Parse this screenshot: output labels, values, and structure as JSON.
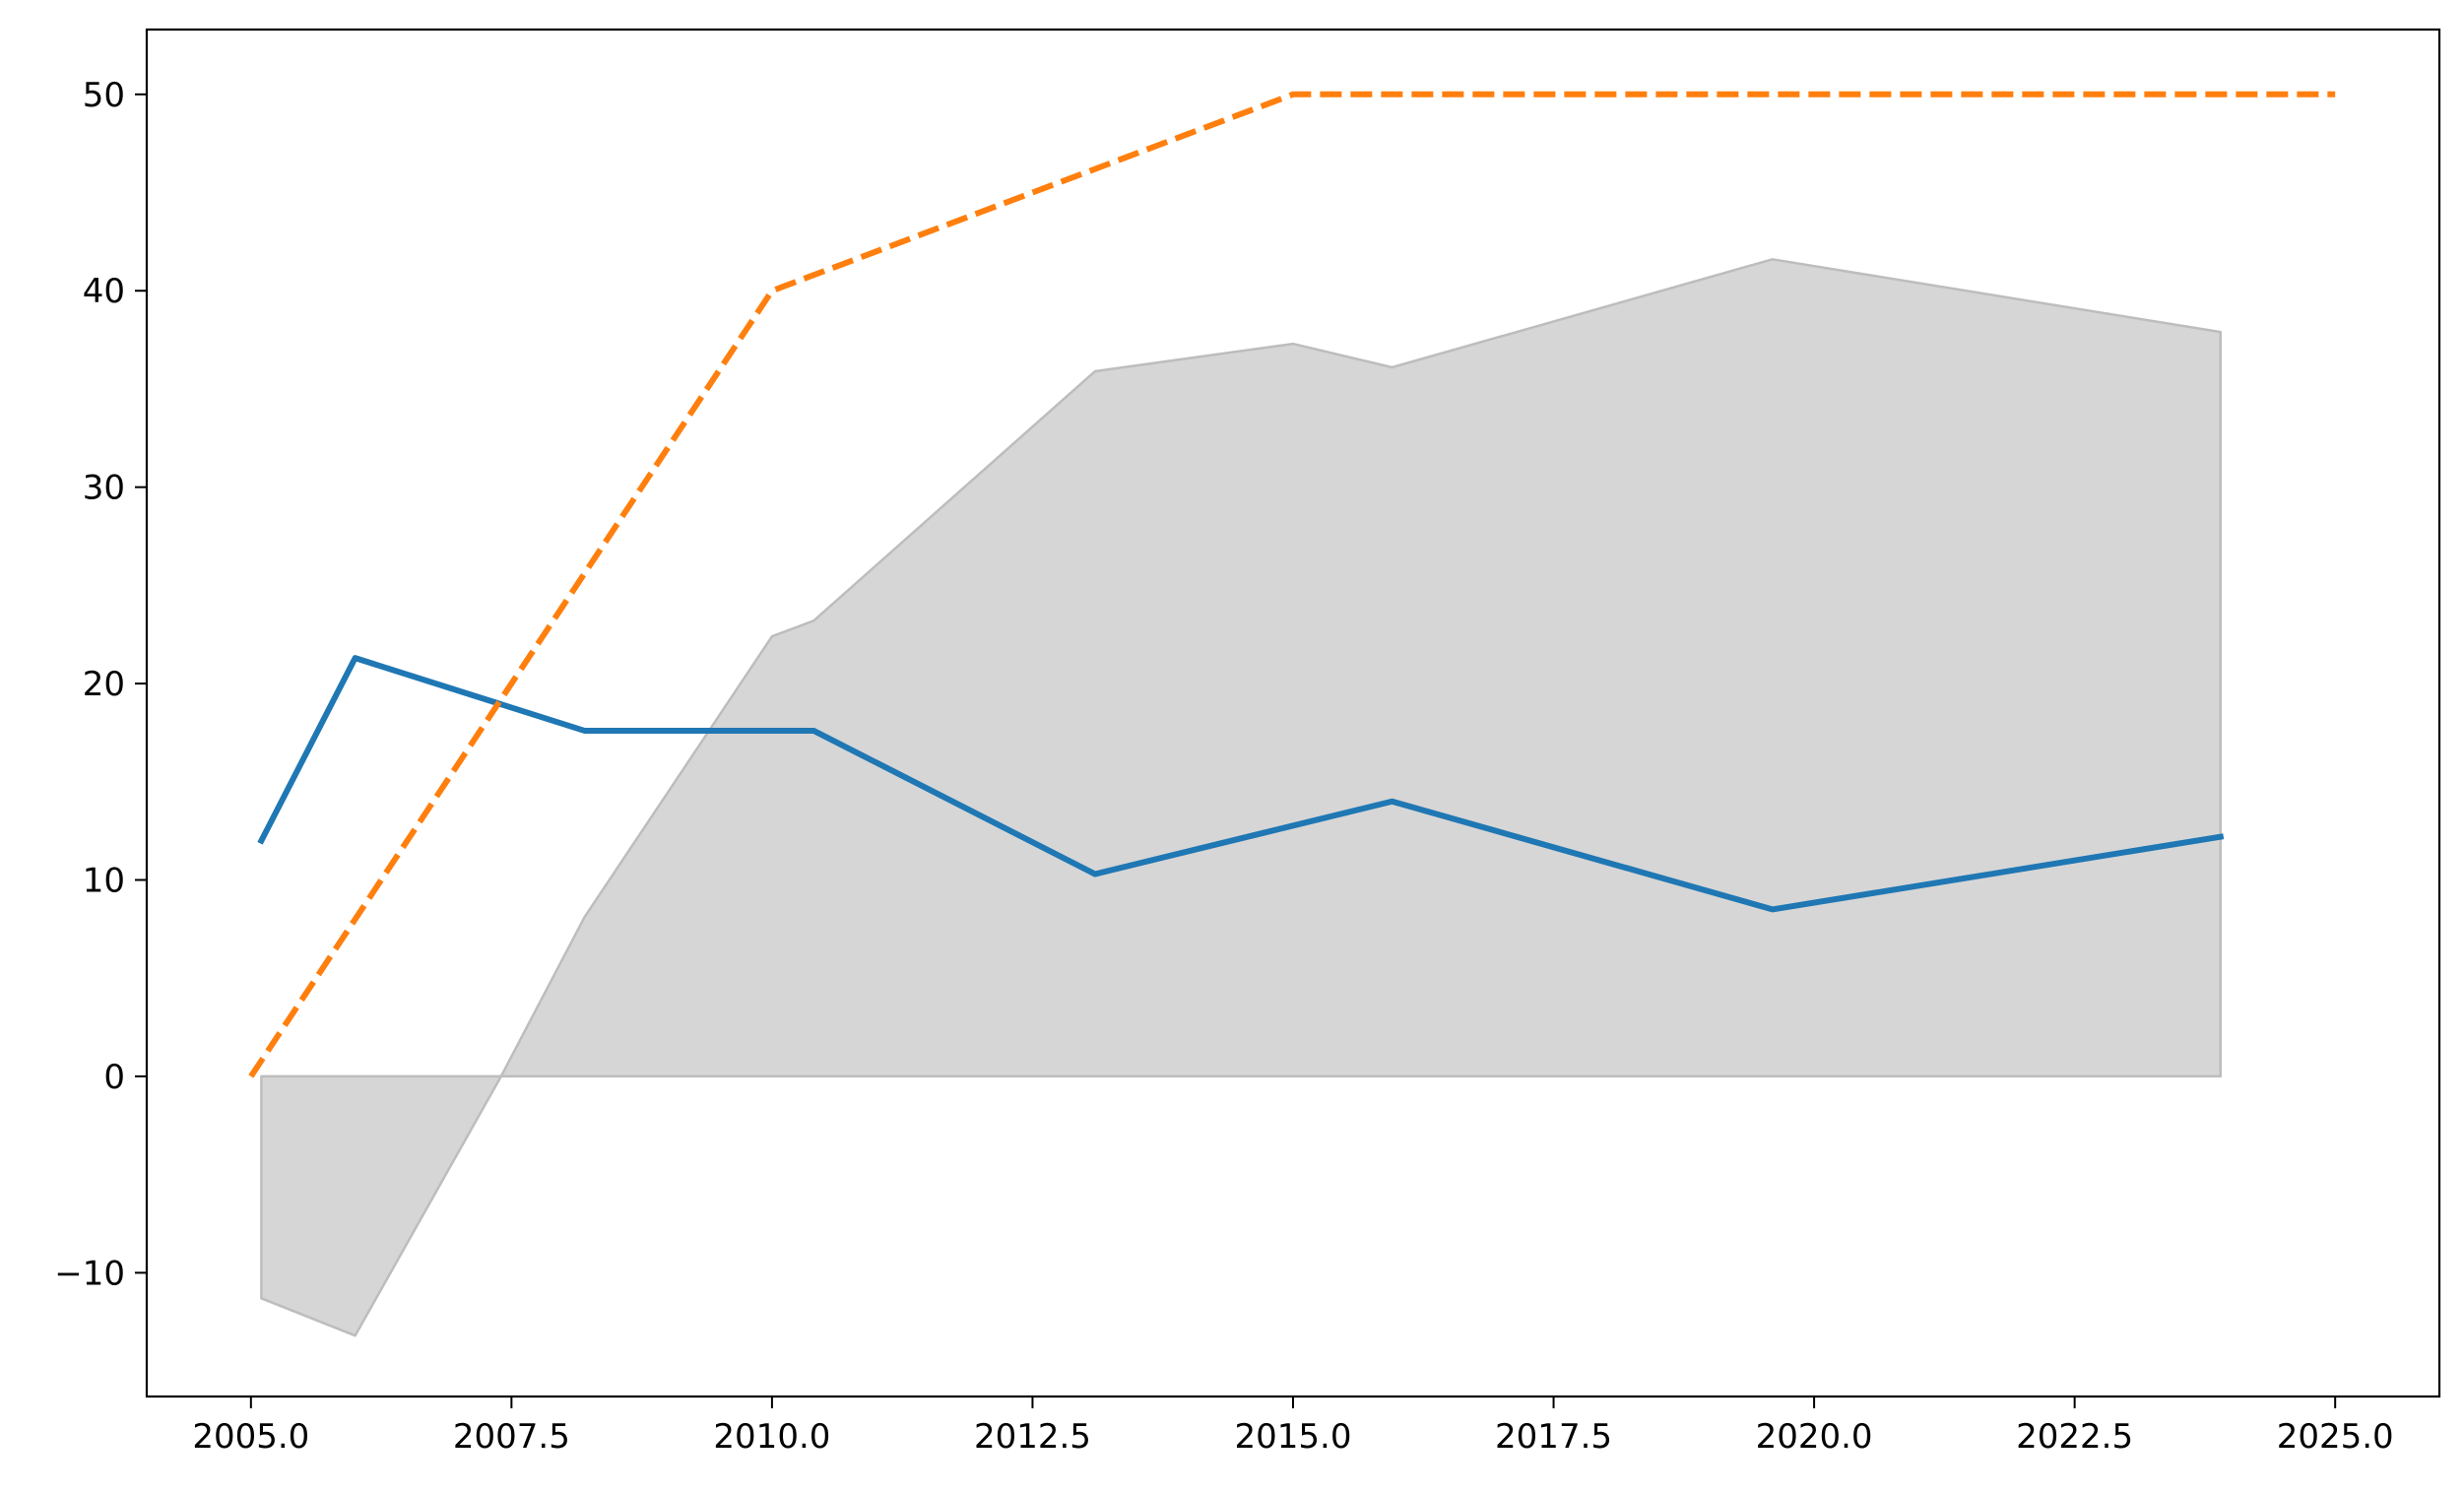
{
  "chart_data": {
    "type": "line",
    "title": "",
    "xlabel": "",
    "ylabel": "",
    "xlim": [
      2004.0,
      2026.0
    ],
    "ylim": [
      -16.3,
      53.3
    ],
    "grid": false,
    "x_ticks": [
      2005.0,
      2007.5,
      2010.0,
      2012.5,
      2015.0,
      2017.5,
      2020.0,
      2022.5,
      2025.0
    ],
    "x_tick_labels": [
      "2005.0",
      "2007.5",
      "2010.0",
      "2012.5",
      "2015.0",
      "2017.5",
      "2020.0",
      "2022.5",
      "2025.0"
    ],
    "y_ticks": [
      -10,
      0,
      10,
      20,
      30,
      40,
      50
    ],
    "y_tick_labels": [
      "−10",
      "0",
      "10",
      "20",
      "30",
      "40",
      "50"
    ],
    "band": {
      "color": "#d6d6d6",
      "edge_color": "#bdbdbd",
      "baseline": 0,
      "points": [
        {
          "x": 2005.1,
          "y": -11.3
        },
        {
          "x": 2006.0,
          "y": -13.2
        },
        {
          "x": 2007.4,
          "y": 0.0
        },
        {
          "x": 2008.2,
          "y": 8.1
        },
        {
          "x": 2010.0,
          "y": 22.4
        },
        {
          "x": 2010.4,
          "y": 23.2
        },
        {
          "x": 2013.1,
          "y": 35.9
        },
        {
          "x": 2015.0,
          "y": 37.3
        },
        {
          "x": 2015.95,
          "y": 36.1
        },
        {
          "x": 2019.6,
          "y": 41.6
        },
        {
          "x": 2023.9,
          "y": 37.9
        }
      ]
    },
    "series": [
      {
        "color": "#1f77b4",
        "style": "solid",
        "points": [
          {
            "x": 2005.1,
            "y": 12.0
          },
          {
            "x": 2006.0,
            "y": 21.3
          },
          {
            "x": 2008.2,
            "y": 17.6
          },
          {
            "x": 2010.4,
            "y": 17.6
          },
          {
            "x": 2013.1,
            "y": 10.3
          },
          {
            "x": 2015.95,
            "y": 14.0
          },
          {
            "x": 2019.6,
            "y": 8.5
          },
          {
            "x": 2023.9,
            "y": 12.2
          }
        ]
      },
      {
        "color": "#ff7f0e",
        "style": "dashed",
        "points": [
          {
            "x": 2005.0,
            "y": 0.0
          },
          {
            "x": 2010.0,
            "y": 40.0
          },
          {
            "x": 2015.0,
            "y": 50.0
          },
          {
            "x": 2025.0,
            "y": 50.0
          }
        ]
      }
    ]
  }
}
